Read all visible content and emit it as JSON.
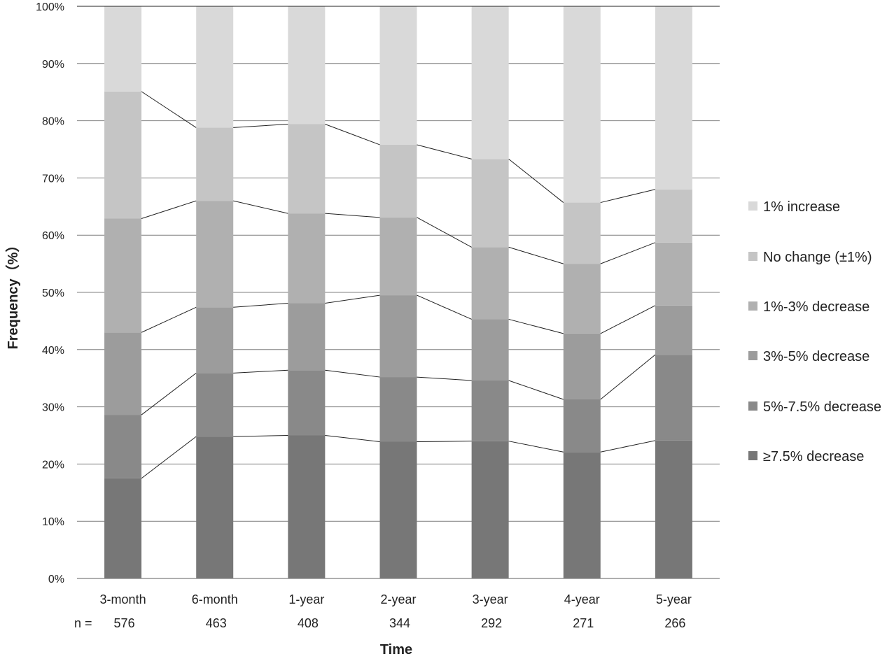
{
  "chart_data": {
    "type": "bar",
    "stacked": true,
    "percent_stacked": true,
    "xlabel": "Time",
    "ylabel": "Frequency（%）",
    "ylim": [
      0,
      100
    ],
    "yticks": [
      "0%",
      "10%",
      "20%",
      "30%",
      "40%",
      "50%",
      "60%",
      "70%",
      "80%",
      "90%",
      "100%"
    ],
    "grid": true,
    "legend_position": "right",
    "series_connector_lines": true,
    "categories": [
      "3-month",
      "6-month",
      "1-year",
      "2-year",
      "3-year",
      "4-year",
      "5-year"
    ],
    "n_prefix": "n =",
    "n_values": [
      "576",
      "463",
      "408",
      "344",
      "292",
      "271",
      "266"
    ],
    "series": [
      {
        "name": "≥7.5% decrease",
        "color": "#777777",
        "values": [
          17.5,
          24.8,
          25.0,
          23.9,
          24.0,
          22.1,
          24.1
        ]
      },
      {
        "name": "5%-7.5% decrease",
        "color": "#898989",
        "values": [
          11.1,
          11.1,
          11.4,
          11.3,
          10.6,
          9.2,
          15.0
        ]
      },
      {
        "name": "3%-5% decrease",
        "color": "#9c9c9c",
        "values": [
          14.4,
          11.5,
          11.7,
          14.3,
          10.7,
          11.5,
          8.6
        ]
      },
      {
        "name": "1%-3% decrease",
        "color": "#b0b0b0",
        "values": [
          19.9,
          18.6,
          15.7,
          13.6,
          12.6,
          12.2,
          11.0
        ]
      },
      {
        "name": "No change (±1%)",
        "color": "#c5c5c5",
        "values": [
          22.2,
          12.8,
          15.6,
          12.7,
          15.4,
          10.7,
          9.3
        ]
      },
      {
        "name": "1% increase",
        "color": "#d9d9d9",
        "values": [
          14.9,
          21.2,
          20.6,
          24.2,
          26.7,
          34.3,
          32.0
        ]
      }
    ]
  }
}
